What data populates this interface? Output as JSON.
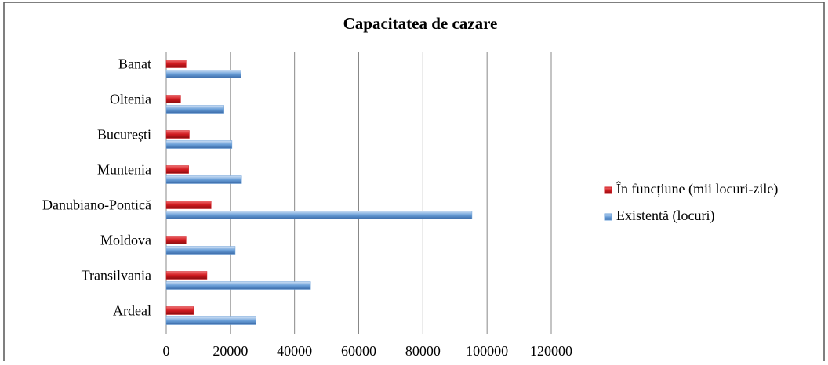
{
  "chart_data": {
    "type": "bar",
    "orientation": "horizontal",
    "title": "Capacitatea de cazare",
    "categories": [
      "Ardeal",
      "Transilvania",
      "Moldova",
      "Danubiano-Pontică",
      "Muntenia",
      "București",
      "Oltenia",
      "Banat"
    ],
    "series": [
      {
        "name": "În funcțiune (mii locuri-zile)",
        "color": "#d0191f",
        "values": [
          8500,
          12700,
          6200,
          14000,
          7000,
          7200,
          4500,
          6200
        ]
      },
      {
        "name": "Existentă (locuri)",
        "color": "#6a9fd8",
        "values": [
          28000,
          45000,
          21500,
          95300,
          23500,
          20500,
          18000,
          23300
        ]
      }
    ],
    "xlim": [
      0,
      120000
    ],
    "xticks": [
      0,
      20000,
      40000,
      60000,
      80000,
      100000,
      120000
    ],
    "grid": true,
    "legend": "right"
  }
}
